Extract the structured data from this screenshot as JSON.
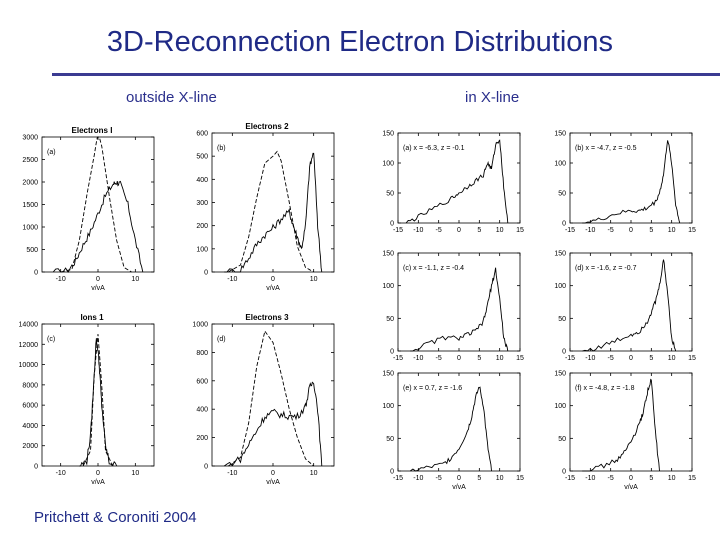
{
  "slide": {
    "title": "3D-Reconnection Electron Distributions",
    "left_heading": "outside X-line",
    "right_heading": "in X-line",
    "citation": "Pritchett & Coroniti 2004"
  },
  "colors": {
    "title": "#1f2a86",
    "rule": "#3b3b92",
    "ink": "#000000"
  },
  "chart_data": [
    {
      "id": "a",
      "type": "line",
      "title": "Electrons I",
      "tag": "(a)",
      "xlabel": "v/vA",
      "xlim": [
        -15,
        15
      ],
      "xticks": [
        "-10",
        "0",
        "10"
      ],
      "ylim": [
        0,
        3000
      ],
      "yticks": [
        "0",
        "500",
        "1000",
        "1500",
        "2000",
        "2500",
        "3000"
      ],
      "series": [
        {
          "style": "solid",
          "x": [
            -12,
            -8,
            -6,
            -4,
            -2,
            0,
            2,
            4,
            5,
            6,
            8,
            10,
            12
          ],
          "y": [
            0,
            30,
            250,
            600,
            900,
            1300,
            1700,
            1950,
            2000,
            1950,
            1500,
            700,
            0
          ]
        },
        {
          "style": "dashed",
          "x": [
            -10,
            -7,
            -5,
            -3,
            -1,
            0,
            1,
            3,
            5,
            7,
            9
          ],
          "y": [
            0,
            60,
            700,
            1700,
            2600,
            3100,
            2800,
            1700,
            700,
            100,
            0
          ]
        }
      ]
    },
    {
      "id": "b",
      "type": "line",
      "title": "Electrons 2",
      "tag": "(b)",
      "xlabel": "v/vA",
      "xlim": [
        -15,
        15
      ],
      "xticks": [
        "-10",
        "0",
        "10"
      ],
      "ylim": [
        0,
        600
      ],
      "yticks": [
        "0",
        "100",
        "200",
        "300",
        "400",
        "500",
        "600"
      ],
      "series": [
        {
          "style": "solid",
          "x": [
            -12,
            -8,
            -6,
            -4,
            -2,
            0,
            2,
            4,
            5,
            6,
            7,
            8,
            9,
            10,
            11,
            12
          ],
          "y": [
            0,
            10,
            60,
            120,
            160,
            190,
            230,
            260,
            200,
            150,
            100,
            200,
            450,
            520,
            200,
            0
          ]
        },
        {
          "style": "dashed",
          "x": [
            -11,
            -8,
            -6,
            -4,
            -2,
            0,
            1,
            2,
            4,
            6,
            8,
            10
          ],
          "y": [
            0,
            30,
            150,
            320,
            470,
            500,
            520,
            480,
            300,
            110,
            20,
            0
          ]
        }
      ]
    },
    {
      "id": "c",
      "type": "line",
      "title": "Ions 1",
      "tag": "(c)",
      "xlabel": "v/vA",
      "xlim": [
        -15,
        15
      ],
      "xticks": [
        "-10",
        "0",
        "10"
      ],
      "ylim": [
        0,
        14000
      ],
      "yticks": [
        "0",
        "2000",
        "4000",
        "6000",
        "8000",
        "10000",
        "12000",
        "14000"
      ],
      "series": [
        {
          "style": "solid",
          "x": [
            -5,
            -3,
            -2,
            -1,
            -0.5,
            0,
            0.5,
            1,
            2,
            3,
            5
          ],
          "y": [
            0,
            500,
            3000,
            9000,
            12500,
            11500,
            9000,
            6000,
            2000,
            400,
            0
          ]
        },
        {
          "style": "dashed",
          "x": [
            -4,
            -2,
            -1,
            0,
            1,
            2,
            4
          ],
          "y": [
            0,
            1500,
            9000,
            13000,
            8000,
            1500,
            0
          ]
        }
      ]
    },
    {
      "id": "d",
      "type": "line",
      "title": "Electrons 3",
      "tag": "(d)",
      "xlabel": "v/vA",
      "xlim": [
        -15,
        15
      ],
      "xticks": [
        "-10",
        "0",
        "10"
      ],
      "ylim": [
        0,
        1000
      ],
      "yticks": [
        "0",
        "200",
        "400",
        "600",
        "800",
        "1000"
      ],
      "series": [
        {
          "style": "solid",
          "x": [
            -12,
            -8,
            -6,
            -4,
            -2,
            0,
            2,
            4,
            6,
            8,
            9,
            10,
            11,
            12
          ],
          "y": [
            0,
            50,
            150,
            250,
            350,
            380,
            360,
            350,
            350,
            420,
            550,
            600,
            400,
            0
          ]
        },
        {
          "style": "dashed",
          "x": [
            -11,
            -8,
            -6,
            -4,
            -2,
            0,
            2,
            4,
            6,
            8,
            10
          ],
          "y": [
            0,
            60,
            300,
            700,
            950,
            870,
            650,
            400,
            200,
            50,
            0
          ]
        }
      ]
    },
    {
      "id": "e",
      "type": "line",
      "tag": "(a) x = -6.3, z = -0.1",
      "xlim": [
        -15,
        15
      ],
      "xticks": [
        "-15",
        "-10",
        "-5",
        "0",
        "5",
        "10",
        "15"
      ],
      "ylim": [
        0,
        150
      ],
      "yticks": [
        "0",
        "50",
        "100",
        "150"
      ],
      "series": [
        {
          "style": "solid",
          "x": [
            -13,
            -10,
            -6,
            -2,
            0,
            2,
            4,
            6,
            7,
            8,
            9,
            10,
            11,
            12
          ],
          "y": [
            0,
            10,
            25,
            40,
            50,
            60,
            70,
            80,
            100,
            90,
            130,
            140,
            60,
            0
          ]
        }
      ]
    },
    {
      "id": "f",
      "type": "line",
      "tag": "(b) x = -4.7, z = -0.5",
      "xlim": [
        -15,
        15
      ],
      "xticks": [
        "-15",
        "-10",
        "-5",
        "0",
        "5",
        "10",
        "15"
      ],
      "ylim": [
        0,
        150
      ],
      "yticks": [
        "0",
        "50",
        "100",
        "150"
      ],
      "series": [
        {
          "style": "solid",
          "x": [
            -12,
            -8,
            -4,
            0,
            2,
            4,
            6,
            7,
            8,
            9,
            10,
            11,
            12
          ],
          "y": [
            0,
            5,
            15,
            20,
            20,
            25,
            35,
            50,
            80,
            140,
            100,
            30,
            0
          ]
        }
      ]
    },
    {
      "id": "g",
      "type": "line",
      "tag": "(c) x = -1.1, z = -0.4",
      "xlim": [
        -15,
        15
      ],
      "xticks": [
        "-15",
        "-10",
        "-5",
        "0",
        "5",
        "10",
        "15"
      ],
      "ylim": [
        0,
        150
      ],
      "yticks": [
        "0",
        "50",
        "100",
        "150"
      ],
      "series": [
        {
          "style": "solid",
          "x": [
            -12,
            -8,
            -4,
            0,
            2,
            4,
            6,
            7,
            8,
            9,
            10,
            11,
            12
          ],
          "y": [
            0,
            10,
            20,
            20,
            25,
            30,
            45,
            70,
            100,
            125,
            80,
            20,
            0
          ]
        }
      ]
    },
    {
      "id": "h",
      "type": "line",
      "tag": "(d) x = -1.6, z = -0.7",
      "xlim": [
        -15,
        15
      ],
      "xticks": [
        "-15",
        "-10",
        "-5",
        "0",
        "5",
        "10",
        "15"
      ],
      "ylim": [
        0,
        150
      ],
      "yticks": [
        "0",
        "50",
        "100",
        "150"
      ],
      "series": [
        {
          "style": "solid",
          "x": [
            -12,
            -8,
            -4,
            0,
            2,
            4,
            5,
            6,
            7,
            8,
            9,
            10,
            11
          ],
          "y": [
            0,
            5,
            15,
            25,
            30,
            45,
            60,
            75,
            100,
            140,
            90,
            20,
            0
          ]
        }
      ]
    },
    {
      "id": "i",
      "type": "line",
      "tag": "(e) x = 0.7, z = -1.6",
      "xlabel": "v/vA",
      "xlim": [
        -15,
        15
      ],
      "xticks": [
        "-15",
        "-10",
        "-5",
        "0",
        "5",
        "10",
        "15"
      ],
      "ylim": [
        0,
        150
      ],
      "yticks": [
        "0",
        "50",
        "100",
        "150"
      ],
      "series": [
        {
          "style": "solid",
          "x": [
            -12,
            -8,
            -4,
            -2,
            0,
            2,
            3,
            4,
            5,
            6,
            7,
            8
          ],
          "y": [
            0,
            5,
            10,
            20,
            35,
            60,
            80,
            110,
            130,
            100,
            40,
            0
          ]
        }
      ]
    },
    {
      "id": "j",
      "type": "line",
      "tag": "(f) x = -4.8, z = -1.8",
      "xlabel": "v/vA",
      "xlim": [
        -15,
        15
      ],
      "xticks": [
        "-15",
        "-10",
        "-5",
        "0",
        "5",
        "10",
        "15"
      ],
      "ylim": [
        0,
        150
      ],
      "yticks": [
        "0",
        "50",
        "100",
        "150"
      ],
      "series": [
        {
          "style": "solid",
          "x": [
            -12,
            -8,
            -4,
            -2,
            0,
            2,
            3,
            4,
            5,
            6,
            7
          ],
          "y": [
            0,
            5,
            15,
            25,
            45,
            70,
            90,
            120,
            140,
            60,
            0
          ]
        }
      ]
    }
  ]
}
